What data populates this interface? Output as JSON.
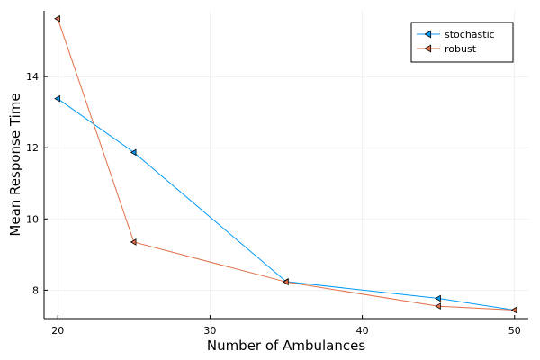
{
  "chart_data": {
    "type": "line",
    "xlabel": "Number of Ambulances",
    "ylabel": "Mean Response Time",
    "xlim": [
      19.1,
      50.9
    ],
    "ylim": [
      7.2,
      15.85
    ],
    "x_ticks": [
      20,
      30,
      40,
      50
    ],
    "y_ticks": [
      8,
      10,
      12,
      14
    ],
    "x_tick_labels": [
      "20",
      "30",
      "40",
      "50"
    ],
    "y_tick_labels": [
      "8",
      "10",
      "12",
      "14"
    ],
    "grid": true,
    "legend_position": "top-right",
    "marker": "left-triangle",
    "series": [
      {
        "name": "stochastic",
        "color": "#009af9",
        "x": [
          20,
          25,
          35,
          45,
          50
        ],
        "y": [
          13.38,
          11.87,
          8.24,
          7.77,
          7.44
        ]
      },
      {
        "name": "robust",
        "color": "#e26f46",
        "x": [
          20,
          25,
          35,
          45,
          50
        ],
        "y": [
          15.63,
          9.35,
          8.23,
          7.55,
          7.44
        ]
      }
    ]
  }
}
